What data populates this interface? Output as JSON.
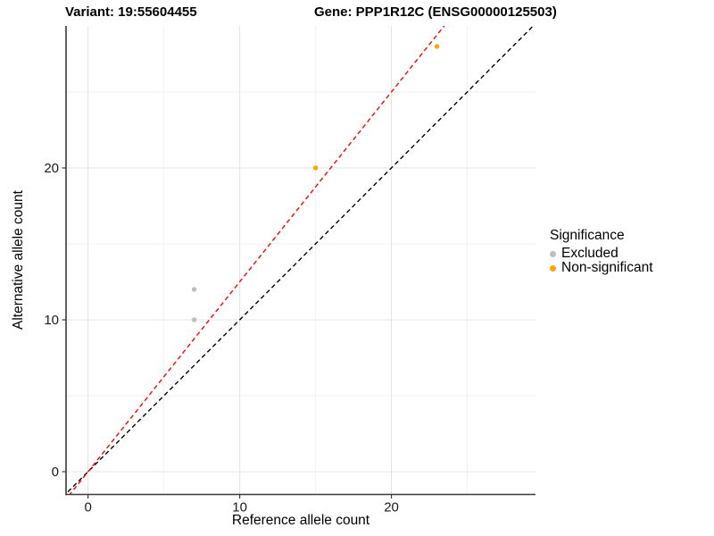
{
  "titles": {
    "left": "Variant: 19:55604455",
    "right": "Gene: PPP1R12C (ENSG00000125503)"
  },
  "chart_data": {
    "type": "scatter",
    "xlabel": "Reference allele count",
    "ylabel": "Alternative allele count",
    "xlim": [
      -1.45,
      29.5
    ],
    "ylim": [
      -1.5,
      29.35
    ],
    "x_ticks": [
      0,
      10,
      20
    ],
    "y_ticks": [
      0,
      10,
      20
    ],
    "x_minor": [
      5,
      15,
      25
    ],
    "y_minor": [
      5,
      15,
      25
    ],
    "grid": "on",
    "colors": {
      "excluded": "#bebebe",
      "non_significant": "#ffa500",
      "identity_line": "#000000",
      "fit_line": "#ff0000",
      "grid_major": "#e4e4e4",
      "grid_minor": "#f0f0f0",
      "axis": "#3a3a3a",
      "tick_label": "#1a1a1a"
    },
    "series": [
      {
        "name": "Excluded",
        "color": "#bebebe",
        "points": [
          [
            7,
            12
          ],
          [
            7,
            10
          ]
        ]
      },
      {
        "name": "Non-significant",
        "color": "#ffa500",
        "points": [
          [
            15,
            20
          ],
          [
            23,
            28
          ]
        ]
      }
    ],
    "lines": [
      {
        "name": "identity-line",
        "color": "#000000",
        "dash": "5 3.5",
        "slope": 1,
        "intercept": 0
      },
      {
        "name": "expected-ratio-line",
        "color": "#ff0000",
        "dash": "5 3.5",
        "slope": 1.25,
        "intercept": 0
      }
    ],
    "legend": {
      "title": "Significance",
      "position": "right",
      "entries": [
        {
          "label": "Excluded",
          "color": "#bebebe"
        },
        {
          "label": "Non-significant",
          "color": "#ffa500"
        }
      ]
    }
  }
}
